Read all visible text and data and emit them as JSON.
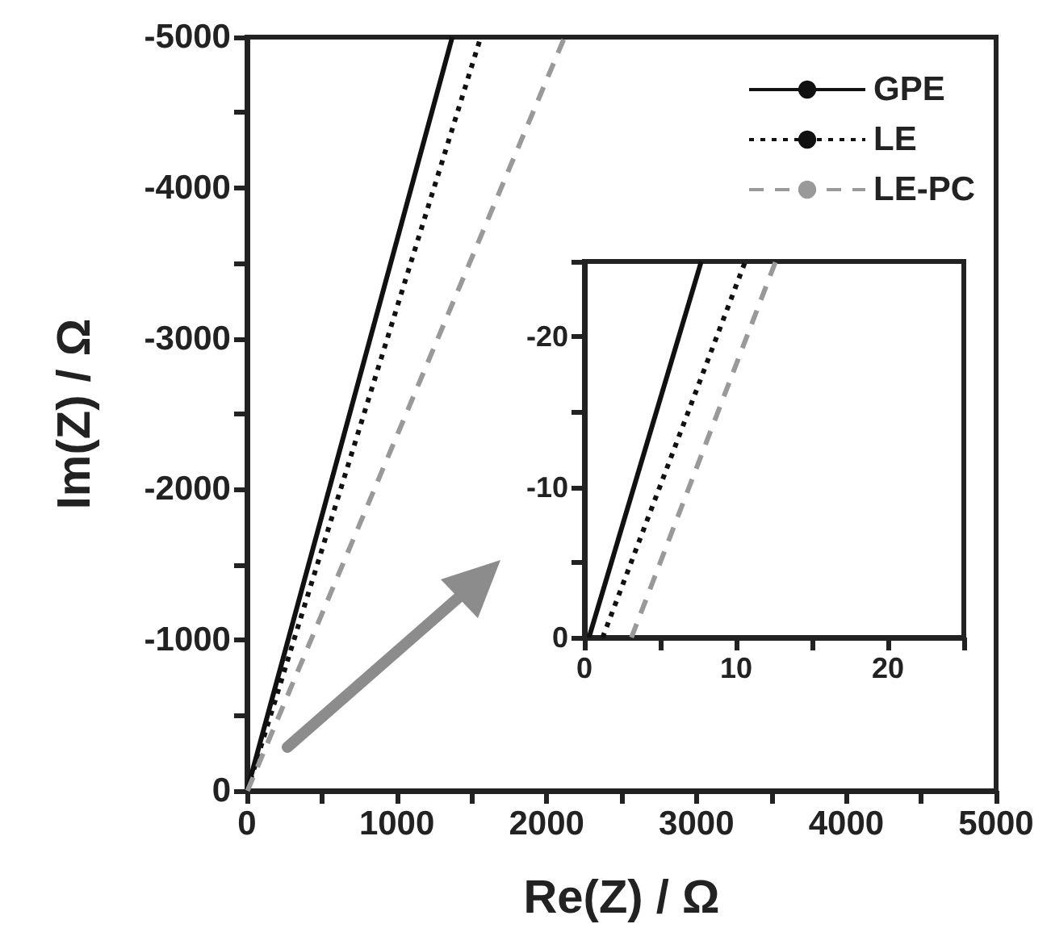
{
  "chart_data": [
    {
      "type": "line",
      "xlabel": "Re(Z) / Ω",
      "ylabel": "Im(Z) / Ω",
      "xlim": [
        0,
        5000
      ],
      "ylim": [
        0,
        -5000
      ],
      "xticks": [
        0,
        {
          "value": 500,
          "label": null
        },
        1000,
        {
          "value": 1500,
          "label": null
        },
        2000,
        {
          "value": 2500,
          "label": null
        },
        3000,
        {
          "value": 3500,
          "label": null
        },
        4000,
        {
          "value": 4500,
          "label": null
        },
        5000
      ],
      "yticks": [
        0,
        {
          "value": -500,
          "label": null
        },
        -1000,
        {
          "value": -1500,
          "label": null
        },
        -2000,
        {
          "value": -2500,
          "label": null
        },
        -3000,
        {
          "value": -3500,
          "label": null
        },
        -4000,
        {
          "value": -4500,
          "label": null
        },
        -5000
      ],
      "legend": "top right",
      "grid": false,
      "marker": "none",
      "series": [
        {
          "name": "GPE",
          "color": "#111111",
          "line_style": "solid",
          "x": [
            0,
            1370
          ],
          "values": [
            0,
            -5000
          ]
        },
        {
          "name": "LE",
          "color": "#111111",
          "line_style": "dotted",
          "x": [
            1,
            1560
          ],
          "values": [
            0,
            -5000
          ]
        },
        {
          "name": "LE-PC",
          "color": "#999999",
          "line_style": "dashed",
          "x": [
            3,
            2120
          ],
          "values": [
            0,
            -5000
          ]
        }
      ]
    },
    {
      "type": "line",
      "xlim": [
        0,
        25
      ],
      "ylim": [
        0,
        -25
      ],
      "xticks": [
        0,
        {
          "value": 5,
          "label": null
        },
        10,
        {
          "value": 15,
          "label": null
        },
        20,
        {
          "value": 25,
          "label": null
        }
      ],
      "yticks": [
        0,
        {
          "value": -5,
          "label": null
        },
        -10,
        {
          "value": -15,
          "label": null
        },
        -20,
        {
          "value": -25,
          "label": null
        }
      ],
      "legend": false,
      "grid": false,
      "marker": "none",
      "series": [
        {
          "color": "#111111",
          "line_style": "solid",
          "x": [
            0.3,
            7.7
          ],
          "values": [
            0,
            -25
          ]
        },
        {
          "color": "#111111",
          "line_style": "dotted",
          "x": [
            1.2,
            10.6
          ],
          "values": [
            0,
            -25
          ]
        },
        {
          "color": "#999999",
          "line_style": "dashed",
          "x": [
            3.1,
            12.6
          ],
          "values": [
            0,
            -25
          ]
        }
      ]
    }
  ]
}
